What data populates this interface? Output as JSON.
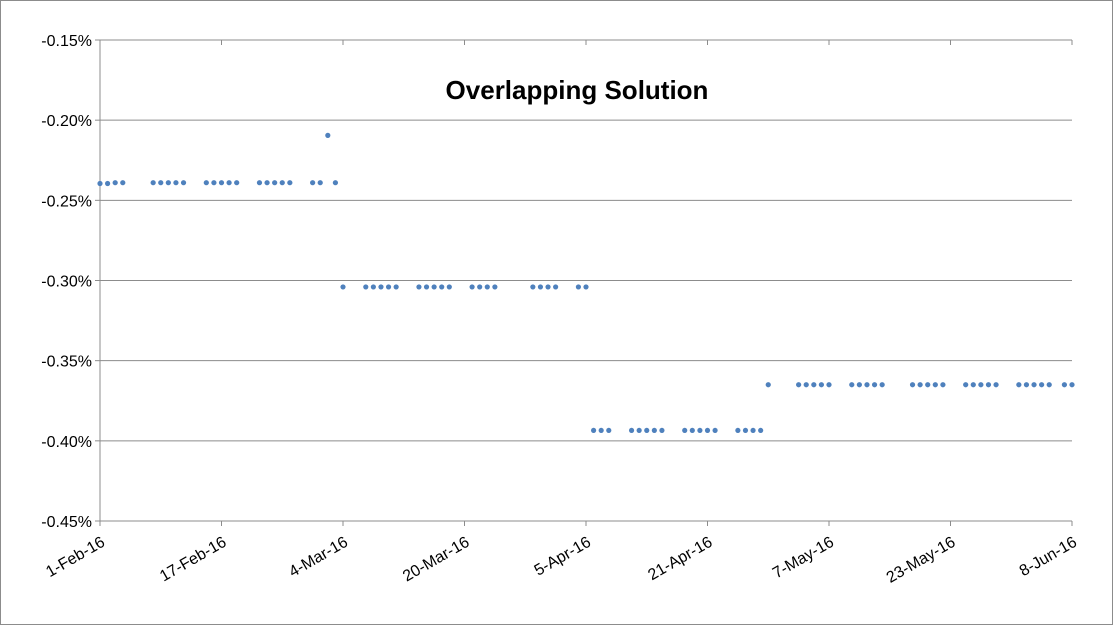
{
  "chart_data": {
    "type": "scatter",
    "title": "Overlapping Solution",
    "xlabel": "",
    "ylabel": "",
    "ylim": [
      -0.45,
      -0.15
    ],
    "xlim": [
      "2016-02-01",
      "2016-06-08"
    ],
    "grid": "horizontal",
    "legend": "none",
    "marker_color": "#4f81bd",
    "y_ticks": [
      "-0.15%",
      "-0.20%",
      "-0.25%",
      "-0.30%",
      "-0.35%",
      "-0.40%",
      "-0.45%"
    ],
    "y_tick_values": [
      -0.15,
      -0.2,
      -0.25,
      -0.3,
      -0.35,
      -0.4,
      -0.45
    ],
    "x_ticks": [
      "1-Feb-16",
      "17-Feb-16",
      "4-Mar-16",
      "20-Mar-16",
      "5-Apr-16",
      "21-Apr-16",
      "7-May-16",
      "23-May-16",
      "8-Jun-16"
    ],
    "x_tick_dates": [
      "2016-02-01",
      "2016-02-17",
      "2016-03-04",
      "2016-03-20",
      "2016-04-05",
      "2016-04-21",
      "2016-05-07",
      "2016-05-23",
      "2016-06-08"
    ],
    "points": [
      {
        "x": "2016-02-01",
        "y": -0.2395
      },
      {
        "x": "2016-02-02",
        "y": -0.2395
      },
      {
        "x": "2016-02-03",
        "y": -0.239
      },
      {
        "x": "2016-02-04",
        "y": -0.239
      },
      {
        "x": "2016-02-08",
        "y": -0.239
      },
      {
        "x": "2016-02-09",
        "y": -0.239
      },
      {
        "x": "2016-02-10",
        "y": -0.239
      },
      {
        "x": "2016-02-11",
        "y": -0.239
      },
      {
        "x": "2016-02-12",
        "y": -0.239
      },
      {
        "x": "2016-02-15",
        "y": -0.239
      },
      {
        "x": "2016-02-16",
        "y": -0.239
      },
      {
        "x": "2016-02-17",
        "y": -0.239
      },
      {
        "x": "2016-02-18",
        "y": -0.239
      },
      {
        "x": "2016-02-19",
        "y": -0.239
      },
      {
        "x": "2016-02-22",
        "y": -0.239
      },
      {
        "x": "2016-02-23",
        "y": -0.239
      },
      {
        "x": "2016-02-24",
        "y": -0.239
      },
      {
        "x": "2016-02-25",
        "y": -0.239
      },
      {
        "x": "2016-02-26",
        "y": -0.239
      },
      {
        "x": "2016-02-29",
        "y": -0.239
      },
      {
        "x": "2016-03-01",
        "y": -0.239
      },
      {
        "x": "2016-03-02",
        "y": -0.2095
      },
      {
        "x": "2016-03-03",
        "y": -0.239
      },
      {
        "x": "2016-03-04",
        "y": -0.304
      },
      {
        "x": "2016-03-07",
        "y": -0.304
      },
      {
        "x": "2016-03-08",
        "y": -0.304
      },
      {
        "x": "2016-03-09",
        "y": -0.304
      },
      {
        "x": "2016-03-10",
        "y": -0.304
      },
      {
        "x": "2016-03-11",
        "y": -0.304
      },
      {
        "x": "2016-03-14",
        "y": -0.304
      },
      {
        "x": "2016-03-15",
        "y": -0.304
      },
      {
        "x": "2016-03-16",
        "y": -0.304
      },
      {
        "x": "2016-03-17",
        "y": -0.304
      },
      {
        "x": "2016-03-18",
        "y": -0.304
      },
      {
        "x": "2016-03-21",
        "y": -0.304
      },
      {
        "x": "2016-03-22",
        "y": -0.304
      },
      {
        "x": "2016-03-23",
        "y": -0.304
      },
      {
        "x": "2016-03-24",
        "y": -0.304
      },
      {
        "x": "2016-03-29",
        "y": -0.304
      },
      {
        "x": "2016-03-30",
        "y": -0.304
      },
      {
        "x": "2016-03-31",
        "y": -0.304
      },
      {
        "x": "2016-04-01",
        "y": -0.304
      },
      {
        "x": "2016-04-04",
        "y": -0.304
      },
      {
        "x": "2016-04-05",
        "y": -0.304
      },
      {
        "x": "2016-04-06",
        "y": -0.3935
      },
      {
        "x": "2016-04-07",
        "y": -0.3935
      },
      {
        "x": "2016-04-08",
        "y": -0.3935
      },
      {
        "x": "2016-04-11",
        "y": -0.3935
      },
      {
        "x": "2016-04-12",
        "y": -0.3935
      },
      {
        "x": "2016-04-13",
        "y": -0.3935
      },
      {
        "x": "2016-04-14",
        "y": -0.3935
      },
      {
        "x": "2016-04-15",
        "y": -0.3935
      },
      {
        "x": "2016-04-18",
        "y": -0.3935
      },
      {
        "x": "2016-04-19",
        "y": -0.3935
      },
      {
        "x": "2016-04-20",
        "y": -0.3935
      },
      {
        "x": "2016-04-21",
        "y": -0.3935
      },
      {
        "x": "2016-04-22",
        "y": -0.3935
      },
      {
        "x": "2016-04-25",
        "y": -0.3935
      },
      {
        "x": "2016-04-26",
        "y": -0.3935
      },
      {
        "x": "2016-04-27",
        "y": -0.3935
      },
      {
        "x": "2016-04-28",
        "y": -0.3935
      },
      {
        "x": "2016-04-29",
        "y": -0.365
      },
      {
        "x": "2016-05-03",
        "y": -0.365
      },
      {
        "x": "2016-05-04",
        "y": -0.365
      },
      {
        "x": "2016-05-05",
        "y": -0.365
      },
      {
        "x": "2016-05-06",
        "y": -0.365
      },
      {
        "x": "2016-05-07",
        "y": -0.365
      },
      {
        "x": "2016-05-10",
        "y": -0.365
      },
      {
        "x": "2016-05-11",
        "y": -0.365
      },
      {
        "x": "2016-05-12",
        "y": -0.365
      },
      {
        "x": "2016-05-13",
        "y": -0.365
      },
      {
        "x": "2016-05-14",
        "y": -0.365
      },
      {
        "x": "2016-05-18",
        "y": -0.365
      },
      {
        "x": "2016-05-19",
        "y": -0.365
      },
      {
        "x": "2016-05-20",
        "y": -0.365
      },
      {
        "x": "2016-05-21",
        "y": -0.365
      },
      {
        "x": "2016-05-22",
        "y": -0.365
      },
      {
        "x": "2016-05-25",
        "y": -0.365
      },
      {
        "x": "2016-05-26",
        "y": -0.365
      },
      {
        "x": "2016-05-27",
        "y": -0.365
      },
      {
        "x": "2016-05-28",
        "y": -0.365
      },
      {
        "x": "2016-05-29",
        "y": -0.365
      },
      {
        "x": "2016-06-01",
        "y": -0.365
      },
      {
        "x": "2016-06-02",
        "y": -0.365
      },
      {
        "x": "2016-06-03",
        "y": -0.365
      },
      {
        "x": "2016-06-04",
        "y": -0.365
      },
      {
        "x": "2016-06-05",
        "y": -0.365
      },
      {
        "x": "2016-06-07",
        "y": -0.365
      },
      {
        "x": "2016-06-08",
        "y": -0.365
      }
    ]
  }
}
